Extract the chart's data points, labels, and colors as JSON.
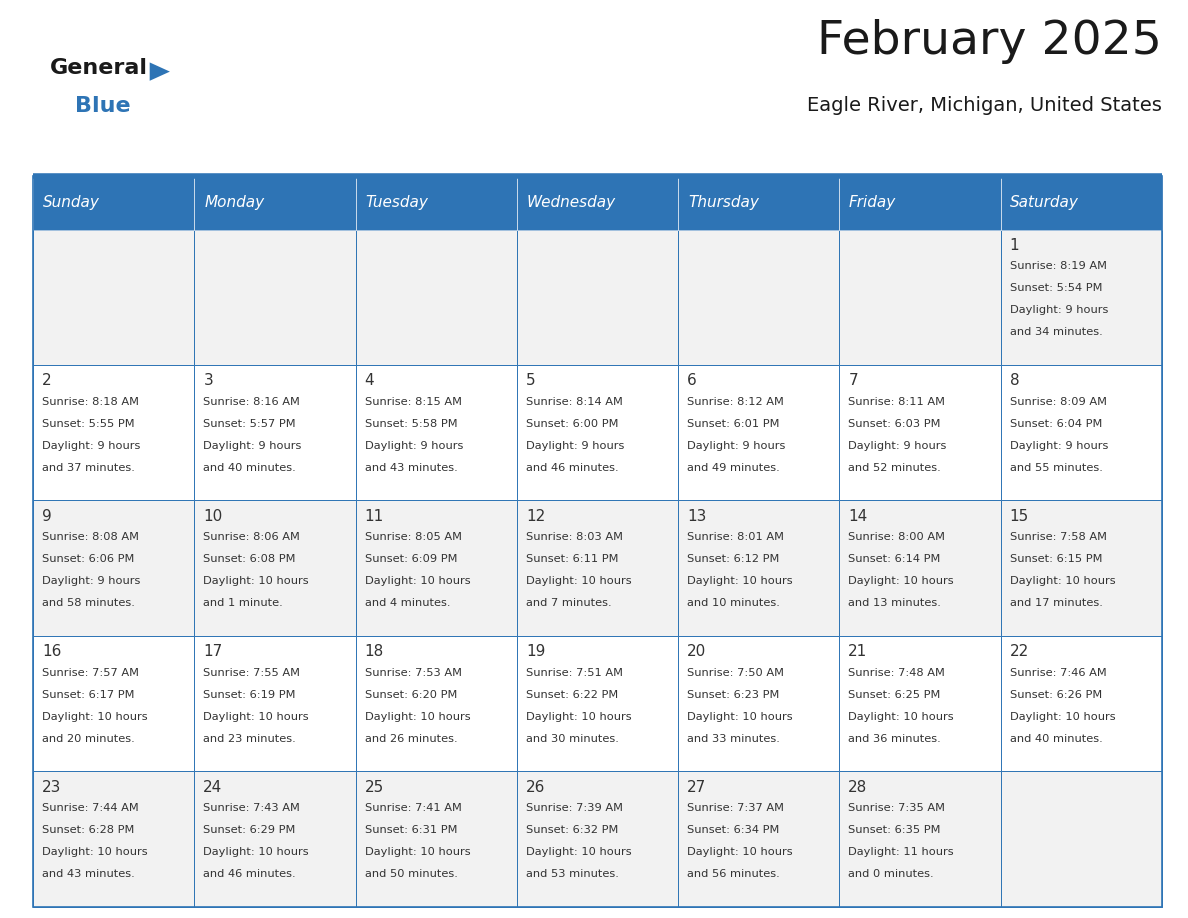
{
  "title": "February 2025",
  "subtitle": "Eagle River, Michigan, United States",
  "header_color": "#2e74b5",
  "header_text_color": "#ffffff",
  "day_names": [
    "Sunday",
    "Monday",
    "Tuesday",
    "Wednesday",
    "Thursday",
    "Friday",
    "Saturday"
  ],
  "background_color": "#ffffff",
  "cell_even_color": "#f2f2f2",
  "cell_odd_color": "#ffffff",
  "border_color": "#2e74b5",
  "text_color": "#333333",
  "title_fontsize": 34,
  "subtitle_fontsize": 14,
  "header_fontsize": 11,
  "day_num_fontsize": 11,
  "cell_text_fontsize": 8.2,
  "days": [
    {
      "day": 1,
      "col": 6,
      "row": 0,
      "sunrise": "8:19 AM",
      "sunset": "5:54 PM",
      "daylight_h": "9 hours",
      "daylight_m": "and 34 minutes."
    },
    {
      "day": 2,
      "col": 0,
      "row": 1,
      "sunrise": "8:18 AM",
      "sunset": "5:55 PM",
      "daylight_h": "9 hours",
      "daylight_m": "and 37 minutes."
    },
    {
      "day": 3,
      "col": 1,
      "row": 1,
      "sunrise": "8:16 AM",
      "sunset": "5:57 PM",
      "daylight_h": "9 hours",
      "daylight_m": "and 40 minutes."
    },
    {
      "day": 4,
      "col": 2,
      "row": 1,
      "sunrise": "8:15 AM",
      "sunset": "5:58 PM",
      "daylight_h": "9 hours",
      "daylight_m": "and 43 minutes."
    },
    {
      "day": 5,
      "col": 3,
      "row": 1,
      "sunrise": "8:14 AM",
      "sunset": "6:00 PM",
      "daylight_h": "9 hours",
      "daylight_m": "and 46 minutes."
    },
    {
      "day": 6,
      "col": 4,
      "row": 1,
      "sunrise": "8:12 AM",
      "sunset": "6:01 PM",
      "daylight_h": "9 hours",
      "daylight_m": "and 49 minutes."
    },
    {
      "day": 7,
      "col": 5,
      "row": 1,
      "sunrise": "8:11 AM",
      "sunset": "6:03 PM",
      "daylight_h": "9 hours",
      "daylight_m": "and 52 minutes."
    },
    {
      "day": 8,
      "col": 6,
      "row": 1,
      "sunrise": "8:09 AM",
      "sunset": "6:04 PM",
      "daylight_h": "9 hours",
      "daylight_m": "and 55 minutes."
    },
    {
      "day": 9,
      "col": 0,
      "row": 2,
      "sunrise": "8:08 AM",
      "sunset": "6:06 PM",
      "daylight_h": "9 hours",
      "daylight_m": "and 58 minutes."
    },
    {
      "day": 10,
      "col": 1,
      "row": 2,
      "sunrise": "8:06 AM",
      "sunset": "6:08 PM",
      "daylight_h": "10 hours",
      "daylight_m": "and 1 minute."
    },
    {
      "day": 11,
      "col": 2,
      "row": 2,
      "sunrise": "8:05 AM",
      "sunset": "6:09 PM",
      "daylight_h": "10 hours",
      "daylight_m": "and 4 minutes."
    },
    {
      "day": 12,
      "col": 3,
      "row": 2,
      "sunrise": "8:03 AM",
      "sunset": "6:11 PM",
      "daylight_h": "10 hours",
      "daylight_m": "and 7 minutes."
    },
    {
      "day": 13,
      "col": 4,
      "row": 2,
      "sunrise": "8:01 AM",
      "sunset": "6:12 PM",
      "daylight_h": "10 hours",
      "daylight_m": "and 10 minutes."
    },
    {
      "day": 14,
      "col": 5,
      "row": 2,
      "sunrise": "8:00 AM",
      "sunset": "6:14 PM",
      "daylight_h": "10 hours",
      "daylight_m": "and 13 minutes."
    },
    {
      "day": 15,
      "col": 6,
      "row": 2,
      "sunrise": "7:58 AM",
      "sunset": "6:15 PM",
      "daylight_h": "10 hours",
      "daylight_m": "and 17 minutes."
    },
    {
      "day": 16,
      "col": 0,
      "row": 3,
      "sunrise": "7:57 AM",
      "sunset": "6:17 PM",
      "daylight_h": "10 hours",
      "daylight_m": "and 20 minutes."
    },
    {
      "day": 17,
      "col": 1,
      "row": 3,
      "sunrise": "7:55 AM",
      "sunset": "6:19 PM",
      "daylight_h": "10 hours",
      "daylight_m": "and 23 minutes."
    },
    {
      "day": 18,
      "col": 2,
      "row": 3,
      "sunrise": "7:53 AM",
      "sunset": "6:20 PM",
      "daylight_h": "10 hours",
      "daylight_m": "and 26 minutes."
    },
    {
      "day": 19,
      "col": 3,
      "row": 3,
      "sunrise": "7:51 AM",
      "sunset": "6:22 PM",
      "daylight_h": "10 hours",
      "daylight_m": "and 30 minutes."
    },
    {
      "day": 20,
      "col": 4,
      "row": 3,
      "sunrise": "7:50 AM",
      "sunset": "6:23 PM",
      "daylight_h": "10 hours",
      "daylight_m": "and 33 minutes."
    },
    {
      "day": 21,
      "col": 5,
      "row": 3,
      "sunrise": "7:48 AM",
      "sunset": "6:25 PM",
      "daylight_h": "10 hours",
      "daylight_m": "and 36 minutes."
    },
    {
      "day": 22,
      "col": 6,
      "row": 3,
      "sunrise": "7:46 AM",
      "sunset": "6:26 PM",
      "daylight_h": "10 hours",
      "daylight_m": "and 40 minutes."
    },
    {
      "day": 23,
      "col": 0,
      "row": 4,
      "sunrise": "7:44 AM",
      "sunset": "6:28 PM",
      "daylight_h": "10 hours",
      "daylight_m": "and 43 minutes."
    },
    {
      "day": 24,
      "col": 1,
      "row": 4,
      "sunrise": "7:43 AM",
      "sunset": "6:29 PM",
      "daylight_h": "10 hours",
      "daylight_m": "and 46 minutes."
    },
    {
      "day": 25,
      "col": 2,
      "row": 4,
      "sunrise": "7:41 AM",
      "sunset": "6:31 PM",
      "daylight_h": "10 hours",
      "daylight_m": "and 50 minutes."
    },
    {
      "day": 26,
      "col": 3,
      "row": 4,
      "sunrise": "7:39 AM",
      "sunset": "6:32 PM",
      "daylight_h": "10 hours",
      "daylight_m": "and 53 minutes."
    },
    {
      "day": 27,
      "col": 4,
      "row": 4,
      "sunrise": "7:37 AM",
      "sunset": "6:34 PM",
      "daylight_h": "10 hours",
      "daylight_m": "and 56 minutes."
    },
    {
      "day": 28,
      "col": 5,
      "row": 4,
      "sunrise": "7:35 AM",
      "sunset": "6:35 PM",
      "daylight_h": "11 hours",
      "daylight_m": "and 0 minutes."
    }
  ],
  "logo_general_color": "#1a1a1a",
  "logo_blue_color": "#2e74b5"
}
